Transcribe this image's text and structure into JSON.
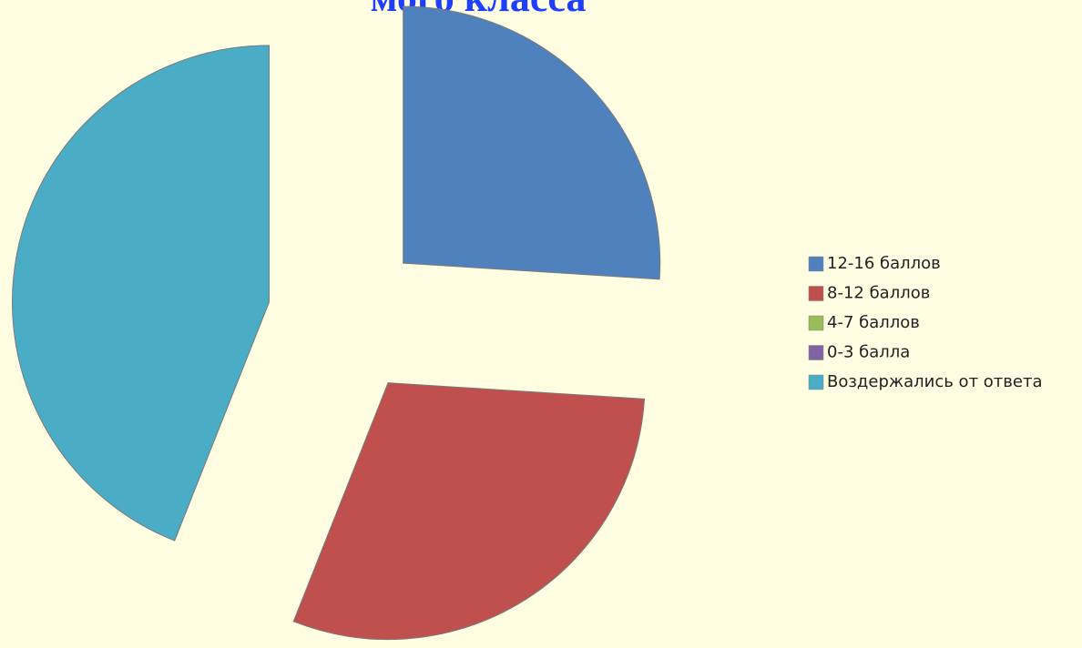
{
  "chart_data": {
    "type": "pie",
    "title": "мого класса",
    "categories": [
      "12-16 баллов",
      "8-12 баллов",
      "4-7 баллов",
      "0-3 балла",
      "Воздержались от ответа"
    ],
    "values": [
      26,
      30,
      0,
      0,
      44
    ],
    "colors": [
      "#4f81bd",
      "#c0504d",
      "#9bbb59",
      "#8064a2",
      "#4bacc6"
    ],
    "exploded": true,
    "legend": "right"
  }
}
